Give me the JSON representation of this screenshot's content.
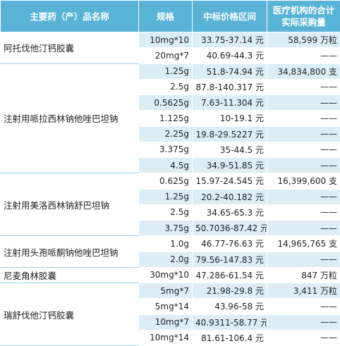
{
  "table": {
    "header": [
      "主要药（产）品名称",
      "规格",
      "中标价格区间",
      "医疗机构的合计实际采购量"
    ],
    "groups": [
      {
        "name": "阿托伐他汀钙胶囊",
        "rows": [
          [
            "10mg*10",
            "33.75-37.14 元",
            "58,599 万粒"
          ],
          [
            "20mg*7",
            "40.69-44.3 元",
            "——"
          ]
        ]
      },
      {
        "name": "注射用哌拉西林钠他唑巴坦钠",
        "rows": [
          [
            "1.25g",
            "51.8-74.94 元",
            "34,834,800 支"
          ],
          [
            "2.5g",
            "87.8-140.317 元",
            "——"
          ],
          [
            "0.5625g",
            "7.63-11.304 元",
            "——"
          ],
          [
            "1.125g",
            "10-19.1 元",
            "——"
          ],
          [
            "2.25g",
            "19.8-29.5227 元",
            "——"
          ],
          [
            "3.375g",
            "35-44.5 元",
            "——"
          ],
          [
            "4.5g",
            "34.9-51.85 元",
            "——"
          ]
        ]
      },
      {
        "name": "注射用美洛西林钠舒巴坦钠",
        "rows": [
          [
            "0.625g",
            "15.97-24.545 元",
            "16,399,600 支"
          ],
          [
            "1.25g",
            "20.2-40.182 元",
            "——"
          ],
          [
            "2.5g",
            "34.65-65.3 元",
            "——"
          ],
          [
            "3.75g",
            "50.7036-87.42 元",
            "——"
          ]
        ]
      },
      {
        "name": "注射用头孢哌酮钠他唑巴坦钠",
        "rows": [
          [
            "1.0g",
            "46.77-76.63 元",
            "14,965,765 支"
          ],
          [
            "2.0g",
            "79.56-147.83 元",
            "——"
          ]
        ]
      },
      {
        "name": "尼麦角林胶囊",
        "rows": [
          [
            "30mg*10",
            "47.286-61.54 元",
            "847 万粒"
          ]
        ]
      },
      {
        "name": "瑞舒伐他汀钙胶囊",
        "rows": [
          [
            "5mg*7",
            "21.98-29.8 元",
            "3,411 万粒"
          ],
          [
            "5mg*14",
            "43.96-58 元",
            "——"
          ],
          [
            "10mg*7",
            "40.9311-58.77 元",
            "——"
          ],
          [
            "10mg*14",
            "81.61-106.4 元",
            "——"
          ]
        ]
      }
    ]
  }
}
